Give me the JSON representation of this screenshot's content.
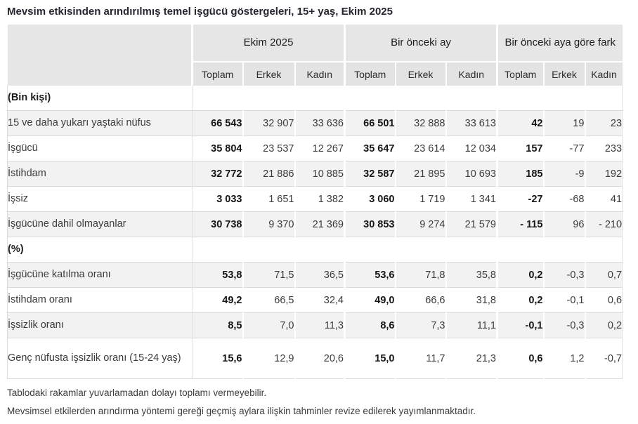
{
  "title": "Mevsim etkisinden arındırılmış temel işgücü göstergeleri, 15+ yaş, Ekim 2025",
  "table": {
    "groups": [
      {
        "label": "Ekim 2025"
      },
      {
        "label": "Bir önceki ay"
      },
      {
        "label": "Bir önceki aya göre fark"
      }
    ],
    "sub_headers": [
      "Toplam",
      "Erkek",
      "Kadın"
    ],
    "rows": [
      {
        "type": "section",
        "label": "(Bin kişi)"
      },
      {
        "type": "data",
        "label": "15 ve daha yukarı yaştaki nüfus",
        "values": [
          "66 543",
          "32 907",
          "33 636",
          "66 501",
          "32 888",
          "33 613",
          "42",
          "19",
          "23"
        ]
      },
      {
        "type": "data",
        "label": "İşgücü",
        "values": [
          "35 804",
          "23 537",
          "12 267",
          "35 647",
          "23 614",
          "12 034",
          "157",
          "-77",
          "233"
        ]
      },
      {
        "type": "data",
        "label": "İstihdam",
        "values": [
          "32 772",
          "21 886",
          "10 885",
          "32 587",
          "21 895",
          "10 693",
          "185",
          "-9",
          "192"
        ]
      },
      {
        "type": "data",
        "label": "İşsiz",
        "values": [
          "3 033",
          "1 651",
          "1 382",
          "3 060",
          "1 719",
          "1 341",
          "-27",
          "-68",
          "41"
        ]
      },
      {
        "type": "data",
        "label": "İşgücüne dahil olmayanlar",
        "values": [
          "30 738",
          "9 370",
          "21 369",
          "30 853",
          "9 274",
          "21 579",
          "- 115",
          "96",
          "- 210"
        ]
      },
      {
        "type": "section",
        "label": "(%)"
      },
      {
        "type": "data",
        "label": "İşgücüne katılma oranı",
        "values": [
          "53,8",
          "71,5",
          "36,5",
          "53,6",
          "71,8",
          "35,8",
          "0,2",
          "-0,3",
          "0,7"
        ]
      },
      {
        "type": "data",
        "label": "İstihdam oranı",
        "values": [
          "49,2",
          "66,5",
          "32,4",
          "49,0",
          "66,6",
          "31,8",
          "0,2",
          "-0,1",
          "0,6"
        ]
      },
      {
        "type": "data",
        "label": "İşsizlik oranı",
        "values": [
          "8,5",
          "7,0",
          "11,3",
          "8,6",
          "7,3",
          "11,1",
          "-0,1",
          "-0,3",
          "0,2"
        ]
      },
      {
        "type": "data",
        "label": "Genç nüfusta işsizlik oranı (15-24 yaş)",
        "values": [
          "15,6",
          "12,9",
          "20,6",
          "15,0",
          "11,7",
          "21,3",
          "0,6",
          "1,2",
          "-0,7"
        ]
      }
    ]
  },
  "footnotes": [
    "Tablodaki rakamlar yuvarlamadan dolayı toplamı vermeyebilir.",
    "Mevsimsel etkilerden arındırma yöntemi gereği geçmiş aylara ilişkin tahminler revize edilerek yayımlanmaktadır."
  ]
}
